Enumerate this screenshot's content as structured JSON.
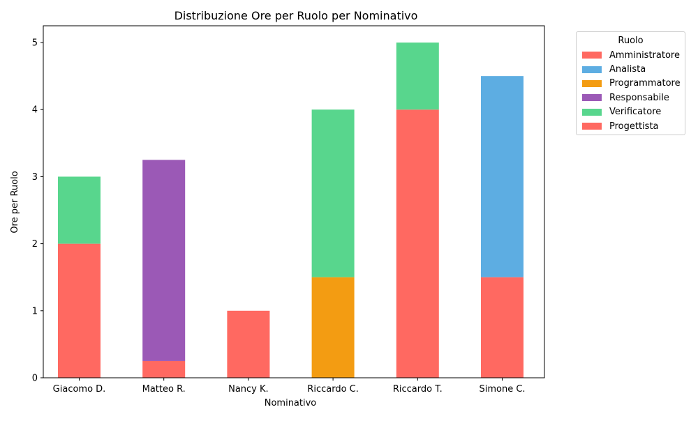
{
  "chart_data": {
    "type": "bar",
    "stacked": true,
    "title": "Distribuzione Ore per Ruolo per Nominativo",
    "xlabel": "Nominativo",
    "ylabel": "Ore per Ruolo",
    "categories": [
      "Giacomo D.",
      "Matteo R.",
      "Nancy K.",
      "Riccardo C.",
      "Riccardo T.",
      "Simone C."
    ],
    "ylim": [
      0,
      5.25
    ],
    "yticks": [
      0,
      1,
      2,
      3,
      4,
      5
    ],
    "grid": false,
    "legend_title": "Ruolo",
    "legend_position": "outside top-right",
    "series": [
      {
        "name": "Amministratore",
        "color": "#ff6961",
        "values": [
          0,
          0,
          1,
          0,
          0,
          0
        ]
      },
      {
        "name": "Analista",
        "color": "#5dade2",
        "values": [
          0,
          0,
          0,
          0,
          0,
          3
        ]
      },
      {
        "name": "Programmatore",
        "color": "#f39c12",
        "values": [
          0,
          0,
          0,
          1.5,
          0,
          0
        ]
      },
      {
        "name": "Responsabile",
        "color": "#9b59b6",
        "values": [
          0,
          3,
          0,
          0,
          0,
          0
        ]
      },
      {
        "name": "Verificatore",
        "color": "#58d68d",
        "values": [
          1,
          0,
          0,
          2.5,
          1,
          0
        ]
      },
      {
        "name": "Progettista",
        "color": "#ff6961",
        "values": [
          2,
          0.25,
          0,
          0,
          4,
          1.5
        ]
      }
    ],
    "stack_order": [
      "Progettista",
      "Amministratore",
      "Programmatore",
      "Responsabile",
      "Analista",
      "Verificatore"
    ]
  }
}
